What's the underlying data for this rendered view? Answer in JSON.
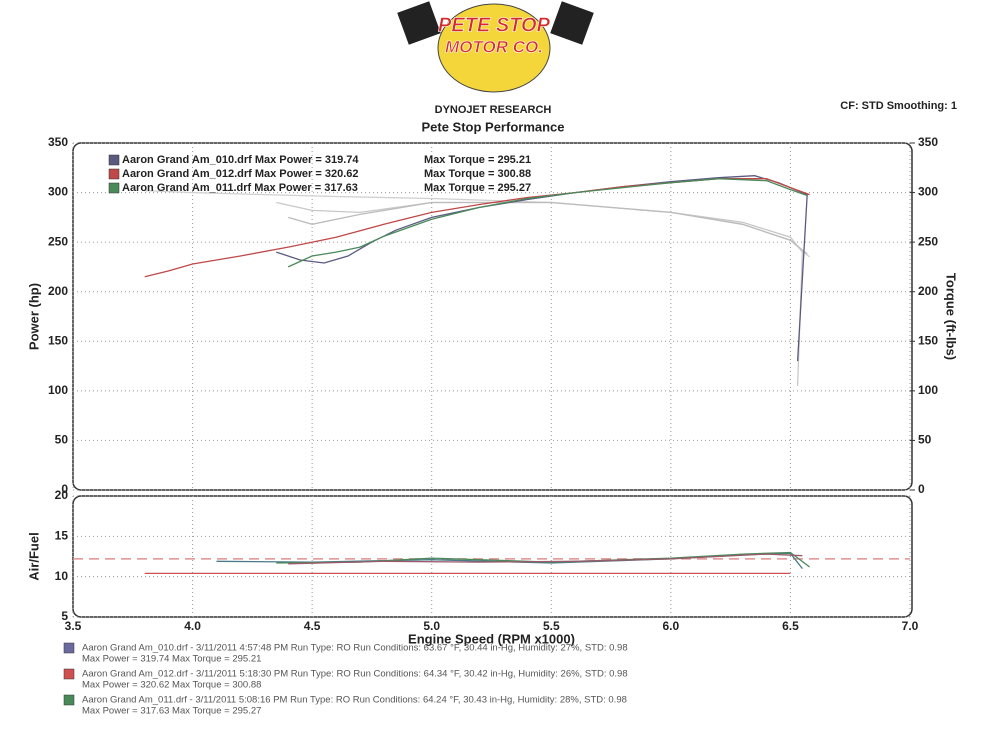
{
  "logo": {
    "line1": "PETE STOP",
    "line2": "MOTOR CO."
  },
  "header": {
    "brand": "DYNOJET RESEARCH",
    "title": "Pete Stop Performance",
    "settings": "CF: STD  Smoothing: 1"
  },
  "chart_data": [
    {
      "type": "line",
      "ylabel": "Power (hp)",
      "y2label": "Torque (ft-lbs)",
      "xlim": [
        3.5,
        7.0
      ],
      "xticks": [
        3.5,
        4,
        4.5,
        5,
        5.5,
        6,
        6.5,
        7
      ],
      "ylim": [
        0,
        350
      ],
      "yticks": [
        0,
        50,
        100,
        150,
        200,
        250,
        300,
        350
      ],
      "y2lim": [
        0,
        350
      ],
      "y2ticks": [
        0,
        50,
        100,
        150,
        200,
        250,
        300,
        350
      ],
      "grid": true,
      "series": [
        {
          "name": "Aaron Grand Am_010.drf Max Power = 319.74",
          "color": "#5a5a80",
          "x": [
            4.35,
            4.45,
            4.55,
            4.65,
            4.75,
            4.85,
            5.0,
            5.2,
            5.4,
            5.6,
            5.8,
            6.0,
            6.2,
            6.35,
            6.45,
            6.5,
            6.57,
            6.53
          ],
          "values": [
            240,
            232,
            229,
            236,
            250,
            262,
            275,
            285,
            293,
            300,
            306,
            311,
            315,
            317,
            310,
            305,
            298,
            130
          ]
        },
        {
          "name": "Aaron Grand Am_012.drf Max Power = 320.62",
          "color": "#c04848",
          "x": [
            3.8,
            3.9,
            4.0,
            4.2,
            4.4,
            4.6,
            4.8,
            5.0,
            5.2,
            5.4,
            5.6,
            5.8,
            6.0,
            6.2,
            6.4,
            6.5,
            6.58
          ],
          "values": [
            215,
            221,
            228,
            236,
            245,
            255,
            268,
            280,
            288,
            295,
            300,
            306,
            310,
            314,
            314,
            305,
            298
          ]
        },
        {
          "name": "Aaron Grand Am_011.drf Max Power = 317.63",
          "color": "#4a8a5a",
          "x": [
            4.4,
            4.5,
            4.6,
            4.7,
            4.8,
            5.0,
            5.2,
            5.4,
            5.6,
            5.8,
            6.0,
            6.2,
            6.4,
            6.5,
            6.57
          ],
          "values": [
            225,
            236,
            240,
            245,
            256,
            273,
            285,
            294,
            300,
            305,
            310,
            314,
            312,
            303,
            297
          ]
        },
        {
          "name": "Max Torque = 295.21",
          "color": "#c8c8c8",
          "axis": "y2",
          "x": [
            4.35,
            4.5,
            4.7,
            5.0,
            5.5,
            6.0,
            6.3,
            6.5,
            6.55,
            6.53
          ],
          "values": [
            290,
            282,
            280,
            290,
            290,
            280,
            270,
            255,
            240,
            105
          ]
        },
        {
          "name": "Max Torque = 300.88",
          "color": "#d0d0d0",
          "axis": "y2",
          "x": [
            3.8,
            4.0,
            4.3,
            4.6,
            5.0,
            5.5,
            6.0,
            6.3,
            6.5,
            6.58
          ],
          "values": [
            302,
            300,
            298,
            296,
            294,
            290,
            280,
            268,
            252,
            235
          ]
        },
        {
          "name": "Max Torque = 295.27",
          "color": "#bcbcbc",
          "axis": "y2",
          "x": [
            4.4,
            4.5,
            4.7,
            5.0,
            5.5,
            6.0,
            6.3,
            6.5,
            6.57
          ],
          "values": [
            275,
            268,
            278,
            290,
            290,
            280,
            268,
            252,
            238
          ]
        }
      ]
    },
    {
      "type": "line",
      "ylabel": "Air/Fuel",
      "xlabel": "Engine Speed (RPM x1000)",
      "xlim": [
        3.5,
        7.0
      ],
      "xticks": [
        3.5,
        {
          "value": 4,
          "label": "4.0"
        },
        4.5,
        {
          "value": 5,
          "label": "5.0"
        },
        5.5,
        {
          "value": 6,
          "label": "6.0"
        },
        6.5,
        {
          "value": 7,
          "label": "7.0"
        }
      ],
      "ylim": [
        5,
        20
      ],
      "yticks": [
        5,
        10,
        15,
        20
      ],
      "grid": true,
      "hlines": [
        {
          "value": 12.2,
          "color": "#e09090",
          "style": "dashed"
        }
      ],
      "series": [
        {
          "color": "#d05050",
          "x": [
            3.8,
            6.5
          ],
          "values": [
            10.4,
            10.4
          ]
        },
        {
          "color": "#4a7a8a",
          "x": [
            4.1,
            4.5,
            5.0,
            5.5,
            6.0,
            6.3,
            6.5,
            6.55
          ],
          "values": [
            11.9,
            11.8,
            12.1,
            11.7,
            12.2,
            12.7,
            12.9,
            11.0
          ]
        },
        {
          "color": "#4a8a5a",
          "x": [
            4.35,
            4.7,
            5.0,
            5.5,
            6.0,
            6.3,
            6.5,
            6.58
          ],
          "values": [
            11.7,
            11.8,
            12.3,
            11.8,
            12.3,
            12.8,
            13.0,
            11.2
          ]
        },
        {
          "color": "#9a5a6a",
          "x": [
            4.4,
            4.8,
            5.2,
            5.6,
            6.0,
            6.4,
            6.55
          ],
          "values": [
            11.6,
            11.9,
            11.8,
            11.9,
            12.2,
            12.8,
            12.6
          ]
        }
      ]
    }
  ],
  "runs": [
    {
      "color": "#6a6aa0",
      "line1": "Aaron Grand Am_010.drf - 3/11/2011 4:57:48 PM  Run Type: RO  Run Conditions: 63.67 °F, 30.44 in-Hg,  Humidity:  27%, STD: 0.98",
      "line2": "Max Power = 319.74  Max Torque = 295.21"
    },
    {
      "color": "#d05050",
      "line1": "Aaron Grand Am_012.drf - 3/11/2011 5:18:30 PM  Run Type: RO  Run Conditions: 64.34 °F, 30.42 in-Hg,  Humidity:  26%, STD: 0.98",
      "line2": "Max Power = 320.62  Max Torque = 300.88"
    },
    {
      "color": "#4a8a5a",
      "line1": "Aaron Grand Am_011.drf - 3/11/2011 5:08:16 PM  Run Type: RO  Run Conditions: 64.24 °F, 30.43 in-Hg,  Humidity:  28%, STD: 0.98",
      "line2": "Max Power = 317.63  Max Torque = 295.27"
    }
  ]
}
